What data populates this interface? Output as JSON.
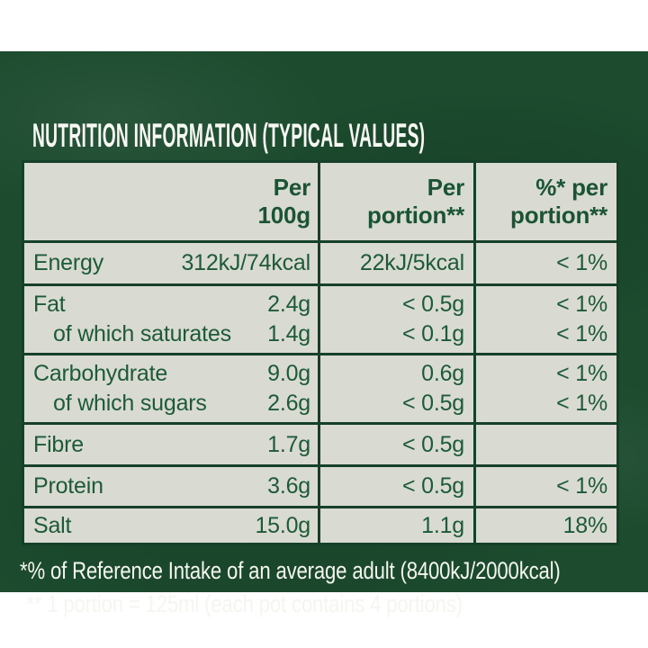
{
  "panel": {
    "title": "NUTRITION INFORMATION (TYPICAL VALUES)"
  },
  "table": {
    "headers": [
      {
        "line1": "Per",
        "line2": "100g"
      },
      {
        "line1": "Per",
        "line2": "portion**"
      },
      {
        "line1": "%* per",
        "line2": "portion**"
      }
    ],
    "groups": [
      {
        "lines": [
          {
            "name": "Energy",
            "per100g": "312kJ/74kcal",
            "perPortion": "22kJ/5kcal",
            "pct": "< 1%"
          }
        ]
      },
      {
        "lines": [
          {
            "name": "Fat",
            "per100g": "2.4g",
            "perPortion": "< 0.5g",
            "pct": "< 1%"
          },
          {
            "name": "of which saturates",
            "per100g": "1.4g",
            "perPortion": "< 0.1g",
            "pct": "< 1%"
          }
        ]
      },
      {
        "lines": [
          {
            "name": "Carbohydrate",
            "per100g": "9.0g",
            "perPortion": "0.6g",
            "pct": "< 1%"
          },
          {
            "name": "of which sugars",
            "per100g": "2.6g",
            "perPortion": "< 0.5g",
            "pct": "< 1%"
          }
        ]
      },
      {
        "lines": [
          {
            "name": "Fibre",
            "per100g": "1.7g",
            "perPortion": "< 0.5g",
            "pct": ""
          }
        ]
      },
      {
        "lines": [
          {
            "name": "Protein",
            "per100g": "3.6g",
            "perPortion": "< 0.5g",
            "pct": "< 1%"
          }
        ]
      },
      {
        "lines": [
          {
            "name": "Salt",
            "per100g": "15.0g",
            "perPortion": "1.1g",
            "pct": "18%"
          }
        ]
      }
    ]
  },
  "footnotes": {
    "line1": "*% of Reference Intake of an average adult (8400kJ/2000kcal)",
    "line2": "** 1 portion = 125ml (each pot contains 4 portions)"
  },
  "colors": {
    "panel_green": "#1c4b2e",
    "cell_background": "#d9dbd2",
    "table_text_green": "#1d5a38",
    "grid_line_green": "#16402a",
    "light_text": "#f4f6f0"
  }
}
